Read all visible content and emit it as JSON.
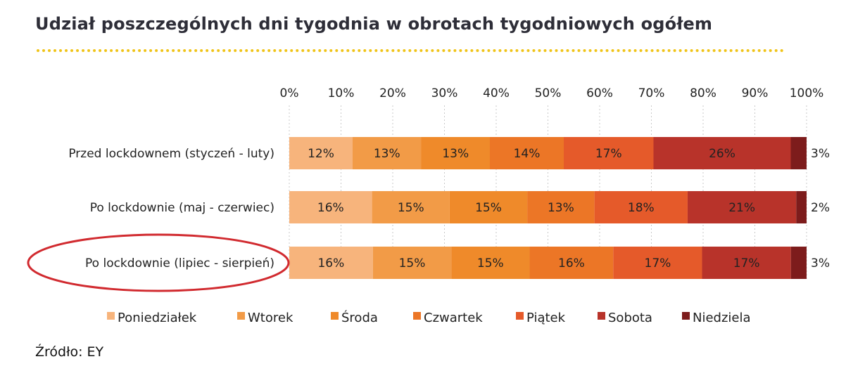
{
  "title": "Udział poszczególnych dni tygodnia w obrotach tygodniowych ogółem",
  "source": {
    "label": "Źródło:",
    "value": "EY"
  },
  "chart_data": {
    "type": "bar",
    "orientation": "horizontal",
    "stacked": true,
    "title": "Udział poszczególnych dni tygodnia w obrotach tygodniowych ogółem",
    "categories": [
      "Przed lockdownem (styczeń - luty)",
      "Po lockdownie (maj - czerwiec)",
      "Po lockdownie (lipiec - sierpień)"
    ],
    "xlim": [
      0,
      100
    ],
    "x_ticks": [
      "0%",
      "10%",
      "20%",
      "30%",
      "40%",
      "50%",
      "60%",
      "70%",
      "80%",
      "90%",
      "100%"
    ],
    "grid": "vertical dashed",
    "legend_position": "bottom",
    "highlighted_category": "Po lockdownie (lipiec - sierpień)",
    "series": [
      {
        "name": "Poniedziałek",
        "color": "#f7b47c",
        "values": [
          12,
          16,
          16
        ],
        "labels": [
          "12%",
          "16%",
          "16%"
        ]
      },
      {
        "name": "Wtorek",
        "color": "#f29b47",
        "values": [
          13,
          15,
          15
        ],
        "labels": [
          "13%",
          "15%",
          "15%"
        ]
      },
      {
        "name": "Środa",
        "color": "#ef8a2a",
        "values": [
          13,
          15,
          15
        ],
        "labels": [
          "13%",
          "15%",
          "15%"
        ]
      },
      {
        "name": "Czwartek",
        "color": "#ec7626",
        "values": [
          14,
          13,
          16
        ],
        "labels": [
          "14%",
          "13%",
          "16%"
        ]
      },
      {
        "name": "Piątek",
        "color": "#e55a2a",
        "values": [
          17,
          18,
          17
        ],
        "labels": [
          "17%",
          "18%",
          "17%"
        ]
      },
      {
        "name": "Sobota",
        "color": "#b8332a",
        "values": [
          26,
          21,
          17
        ],
        "labels": [
          "26%",
          "21%",
          "17%"
        ]
      },
      {
        "name": "Niedziela",
        "color": "#7d1c1c",
        "values": [
          3,
          2,
          3
        ],
        "labels": [
          "3%",
          "2%",
          "3%"
        ]
      }
    ]
  }
}
